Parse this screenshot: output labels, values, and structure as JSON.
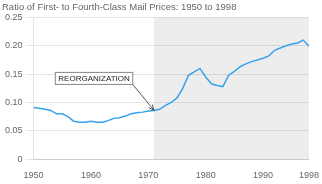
{
  "chart_data": {
    "type": "line",
    "title": "Ratio of First- to Fourth-Class Mail Prices: 1950 to 1998",
    "x": [
      1950,
      1951,
      1952,
      1953,
      1954,
      1955,
      1956,
      1957,
      1958,
      1959,
      1960,
      1961,
      1962,
      1963,
      1964,
      1965,
      1966,
      1967,
      1968,
      1969,
      1970,
      1971,
      1972,
      1973,
      1974,
      1975,
      1976,
      1977,
      1978,
      1979,
      1980,
      1981,
      1982,
      1983,
      1984,
      1985,
      1986,
      1987,
      1988,
      1989,
      1990,
      1991,
      1992,
      1993,
      1994,
      1995,
      1996,
      1997,
      1998
    ],
    "values": [
      0.091,
      0.09,
      0.088,
      0.086,
      0.08,
      0.08,
      0.075,
      0.067,
      0.065,
      0.065,
      0.067,
      0.065,
      0.065,
      0.068,
      0.072,
      0.073,
      0.076,
      0.08,
      0.082,
      0.083,
      0.085,
      0.086,
      0.088,
      0.095,
      0.1,
      0.108,
      0.125,
      0.148,
      0.154,
      0.16,
      0.145,
      0.133,
      0.13,
      0.128,
      0.148,
      0.155,
      0.163,
      0.168,
      0.172,
      0.175,
      0.178,
      0.182,
      0.192,
      0.196,
      0.2,
      0.203,
      0.205,
      0.21,
      0.199
    ],
    "xlim": [
      1950,
      1998
    ],
    "xticks": [
      1950,
      1960,
      1970,
      1980,
      1990,
      1998
    ],
    "ylim": [
      0,
      0.25
    ],
    "yticks": [
      0,
      0.05,
      {
        "value": 0.1,
        "label": "0.10"
      },
      0.15,
      {
        "value": 0.2,
        "label": "0.20"
      },
      0.25
    ],
    "grid": "y",
    "highlight": {
      "x": [
        1971,
        1998
      ]
    },
    "annotations": [
      {
        "text": "REORGANIZATION",
        "x": 1971,
        "y": 0.086
      }
    ]
  }
}
